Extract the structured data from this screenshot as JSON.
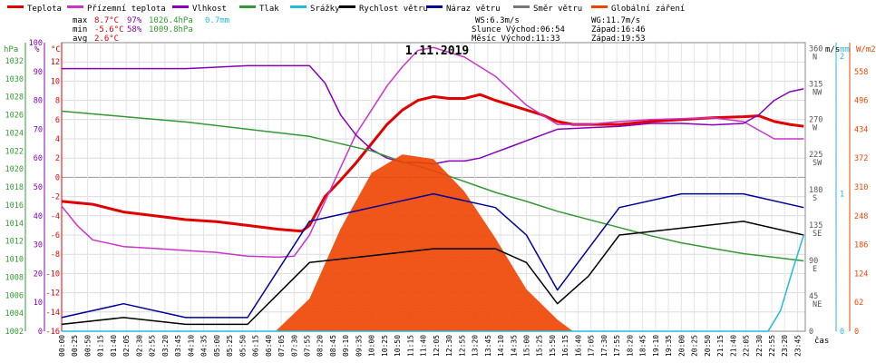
{
  "chart_data": {
    "type": "line",
    "title": "1.11.2019",
    "legend": [
      {
        "label": "Teplota",
        "color": "#e00000"
      },
      {
        "label": "Přízemní teplota",
        "color": "#cc33cc"
      },
      {
        "label": "Vlhkost",
        "color": "#8800bb"
      },
      {
        "label": "Tlak",
        "color": "#339933"
      },
      {
        "label": "Srážky",
        "color": "#22bbdd"
      },
      {
        "label": "Rychlost větru",
        "color": "#000000"
      },
      {
        "label": "Náraz větru",
        "color": "#000099"
      },
      {
        "label": "Směr větru",
        "color": "#777777"
      },
      {
        "label": "Globální záření",
        "color": "#ee4400"
      }
    ],
    "stats": {
      "max": {
        "label": "max",
        "temp": "8.7°C",
        "hum": "97%",
        "press": "1026.4hPa",
        "rain": "0.7mm"
      },
      "min": {
        "label": "min",
        "temp": "-5.6°C",
        "hum": "58%",
        "press": "1009.8hPa"
      },
      "avg": {
        "label": "avg",
        "temp": "2.6°C"
      }
    },
    "info": {
      "ws": "WS:6.3m/s",
      "wg": "WG:11.7m/s",
      "sun_rise": "Slunce Východ:06:54",
      "sun_set": "Západ:16:46",
      "moon_rise": "Měsíc Východ:11:33",
      "moon_set": "Západ:19:53"
    },
    "axis_units": {
      "hpa": "hPa",
      "pct": "%",
      "degc": "°C",
      "ms": "m/s",
      "mm": "mm",
      "wm2": "W/m2",
      "time": "čas"
    },
    "axes": {
      "hpa": [
        "1032",
        "1030",
        "1028",
        "1026",
        "1024",
        "1022",
        "1020",
        "1018",
        "1016",
        "1014",
        "1012",
        "1010",
        "1008",
        "1006",
        "1004",
        "1002"
      ],
      "pct": [
        "100",
        "90",
        "80",
        "70",
        "60",
        "50",
        "40",
        "30",
        "20",
        "10",
        "0"
      ],
      "degc": [
        "12",
        "10",
        "8",
        "6",
        "4",
        "2",
        "0",
        "-2",
        "-4",
        "-6",
        "-8",
        "-10",
        "-12",
        "-14",
        "-16"
      ],
      "dir": [
        {
          "v": "360",
          "d": "N"
        },
        {
          "v": "315",
          "d": "NW"
        },
        {
          "v": "270",
          "d": "W"
        },
        {
          "v": "225",
          "d": "SW"
        },
        {
          "v": "180",
          "d": "S"
        },
        {
          "v": "135",
          "d": "SE"
        },
        {
          "v": "90",
          "d": "E"
        },
        {
          "v": "45",
          "d": "NE"
        },
        {
          "v": "0",
          "d": ""
        }
      ],
      "ms": [
        "2",
        "1",
        "0"
      ],
      "wm2": [
        "558",
        "496",
        "434",
        "372",
        "310",
        "248",
        "186",
        "124",
        "62",
        "0"
      ]
    },
    "x_ticks": [
      "00:00",
      "00:25",
      "00:50",
      "01:15",
      "01:40",
      "02:05",
      "02:30",
      "02:55",
      "03:20",
      "03:45",
      "04:10",
      "04:35",
      "05:00",
      "05:25",
      "05:50",
      "06:15",
      "06:40",
      "07:05",
      "07:30",
      "07:55",
      "08:20",
      "08:45",
      "09:10",
      "09:35",
      "10:00",
      "10:25",
      "10:50",
      "11:15",
      "11:40",
      "12:05",
      "12:30",
      "12:55",
      "13:20",
      "13:45",
      "14:10",
      "14:35",
      "15:00",
      "15:25",
      "15:50",
      "16:15",
      "16:40",
      "17:05",
      "17:30",
      "17:55",
      "18:20",
      "18:45",
      "19:10",
      "19:35",
      "20:00",
      "20:25",
      "20:50",
      "21:15",
      "21:40",
      "22:05",
      "22:30",
      "22:55",
      "23:20",
      "23:45"
    ],
    "ylim_temp": [
      -16,
      14
    ],
    "series": [
      {
        "name": "Teplota",
        "unit": "°C",
        "color": "#e00000",
        "points": [
          [
            0,
            -2.5
          ],
          [
            1,
            -2.8
          ],
          [
            2,
            -3.6
          ],
          [
            3,
            -4.0
          ],
          [
            4,
            -4.4
          ],
          [
            5,
            -4.6
          ],
          [
            6,
            -5.0
          ],
          [
            7,
            -5.4
          ],
          [
            7.75,
            -5.6
          ],
          [
            8,
            -5.0
          ],
          [
            8.5,
            -2.0
          ],
          [
            9,
            -0.3
          ],
          [
            9.5,
            1.5
          ],
          [
            10,
            3.5
          ],
          [
            10.5,
            5.5
          ],
          [
            11,
            7.0
          ],
          [
            11.5,
            8.0
          ],
          [
            12,
            8.4
          ],
          [
            12.5,
            8.2
          ],
          [
            13,
            8.2
          ],
          [
            13.5,
            8.6
          ],
          [
            14,
            8.0
          ],
          [
            14.5,
            7.5
          ],
          [
            15,
            7.0
          ],
          [
            15.5,
            6.5
          ],
          [
            16,
            5.8
          ],
          [
            16.5,
            5.5
          ],
          [
            17,
            5.5
          ],
          [
            18,
            5.5
          ],
          [
            19,
            5.8
          ],
          [
            20,
            6.0
          ],
          [
            21,
            6.2
          ],
          [
            22,
            6.3
          ],
          [
            22.5,
            6.4
          ],
          [
            23,
            5.8
          ],
          [
            23.5,
            5.5
          ],
          [
            23.95,
            5.3
          ]
        ]
      },
      {
        "name": "Přízemní teplota",
        "unit": "°C",
        "color": "#cc33cc",
        "points": [
          [
            0,
            -3.0
          ],
          [
            0.5,
            -5.0
          ],
          [
            1,
            -6.5
          ],
          [
            2,
            -7.2
          ],
          [
            3,
            -7.4
          ],
          [
            4,
            -7.6
          ],
          [
            5,
            -7.8
          ],
          [
            6,
            -8.2
          ],
          [
            7,
            -8.3
          ],
          [
            7.5,
            -8.2
          ],
          [
            8,
            -6.0
          ],
          [
            8.5,
            -2.5
          ],
          [
            9,
            1.0
          ],
          [
            9.5,
            4.5
          ],
          [
            10,
            7.0
          ],
          [
            10.5,
            9.5
          ],
          [
            11,
            11.5
          ],
          [
            11.5,
            13.2
          ],
          [
            12,
            13.5
          ],
          [
            12.5,
            13.0
          ],
          [
            13,
            12.5
          ],
          [
            13.5,
            11.5
          ],
          [
            14,
            10.5
          ],
          [
            14.5,
            9.0
          ],
          [
            15,
            7.5
          ],
          [
            15.5,
            6.5
          ],
          [
            16,
            5.5
          ],
          [
            17,
            5.5
          ],
          [
            18,
            5.8
          ],
          [
            19,
            6.0
          ],
          [
            20,
            6.1
          ],
          [
            21,
            6.2
          ],
          [
            22,
            5.8
          ],
          [
            23,
            4.0
          ],
          [
            23.95,
            4.0
          ]
        ]
      },
      {
        "name": "Vlhkost",
        "unit": "%",
        "color": "#8800bb",
        "points": [
          [
            0,
            91
          ],
          [
            2,
            91
          ],
          [
            4,
            91
          ],
          [
            6,
            92
          ],
          [
            7,
            92
          ],
          [
            8,
            92
          ],
          [
            8.5,
            86
          ],
          [
            9,
            75
          ],
          [
            9.5,
            68
          ],
          [
            10,
            63
          ],
          [
            10.5,
            60
          ],
          [
            11,
            58.5
          ],
          [
            11.5,
            58.5
          ],
          [
            12,
            58
          ],
          [
            12.5,
            59
          ],
          [
            13,
            59
          ],
          [
            13.5,
            60
          ],
          [
            14,
            62
          ],
          [
            14.5,
            64
          ],
          [
            15,
            66
          ],
          [
            15.5,
            68
          ],
          [
            16,
            70
          ],
          [
            17,
            70.5
          ],
          [
            18,
            71
          ],
          [
            19,
            72
          ],
          [
            20,
            72
          ],
          [
            21,
            71.5
          ],
          [
            22,
            72
          ],
          [
            22.5,
            75
          ],
          [
            23,
            80
          ],
          [
            23.5,
            83
          ],
          [
            23.95,
            84
          ]
        ]
      },
      {
        "name": "Tlak",
        "unit": "hPa",
        "color": "#339933",
        "points": [
          [
            0,
            1026.4
          ],
          [
            2,
            1025.8
          ],
          [
            4,
            1025.2
          ],
          [
            6,
            1024.4
          ],
          [
            8,
            1023.6
          ],
          [
            9,
            1022.8
          ],
          [
            10,
            1022.0
          ],
          [
            11,
            1020.8
          ],
          [
            12,
            1019.8
          ],
          [
            13,
            1018.6
          ],
          [
            14,
            1017.4
          ],
          [
            15,
            1016.4
          ],
          [
            16,
            1015.3
          ],
          [
            17,
            1014.4
          ],
          [
            18,
            1013.5
          ],
          [
            19,
            1012.6
          ],
          [
            20,
            1011.8
          ],
          [
            21,
            1011.2
          ],
          [
            22,
            1010.6
          ],
          [
            23,
            1010.2
          ],
          [
            23.95,
            1009.8
          ]
        ]
      },
      {
        "name": "Globální záření",
        "unit": "W/m2",
        "color": "#ee4400",
        "points": [
          [
            6.9,
            0
          ],
          [
            8,
            70
          ],
          [
            9,
            220
          ],
          [
            10,
            340
          ],
          [
            11,
            380
          ],
          [
            12,
            370
          ],
          [
            13,
            300
          ],
          [
            14,
            200
          ],
          [
            15,
            90
          ],
          [
            16,
            25
          ],
          [
            16.5,
            0
          ]
        ]
      },
      {
        "name": "Rychlost větru",
        "unit": "m/s",
        "color": "#000000",
        "points": [
          [
            0,
            0.05
          ],
          [
            2,
            0.1
          ],
          [
            4,
            0.05
          ],
          [
            6,
            0.05
          ],
          [
            8,
            0.5
          ],
          [
            10,
            0.55
          ],
          [
            12,
            0.6
          ],
          [
            14,
            0.6
          ],
          [
            15,
            0.5
          ],
          [
            16,
            0.2
          ],
          [
            17,
            0.4
          ],
          [
            18,
            0.7
          ],
          [
            20,
            0.75
          ],
          [
            22,
            0.8
          ],
          [
            23.95,
            0.7
          ]
        ]
      },
      {
        "name": "Náraz větru",
        "unit": "m/s",
        "color": "#000099",
        "points": [
          [
            0,
            0.1
          ],
          [
            2,
            0.2
          ],
          [
            4,
            0.1
          ],
          [
            6,
            0.1
          ],
          [
            8,
            0.8
          ],
          [
            10,
            0.9
          ],
          [
            12,
            1.0
          ],
          [
            14,
            0.9
          ],
          [
            15,
            0.7
          ],
          [
            16,
            0.3
          ],
          [
            17,
            0.6
          ],
          [
            18,
            0.9
          ],
          [
            20,
            1.0
          ],
          [
            22,
            1.0
          ],
          [
            23.95,
            0.9
          ]
        ]
      },
      {
        "name": "Srážky",
        "unit": "mm",
        "color": "#22bbdd",
        "points": [
          [
            0,
            0
          ],
          [
            22.8,
            0
          ],
          [
            23.2,
            0.15
          ],
          [
            23.6,
            0.45
          ],
          [
            23.95,
            0.7
          ]
        ]
      }
    ]
  }
}
